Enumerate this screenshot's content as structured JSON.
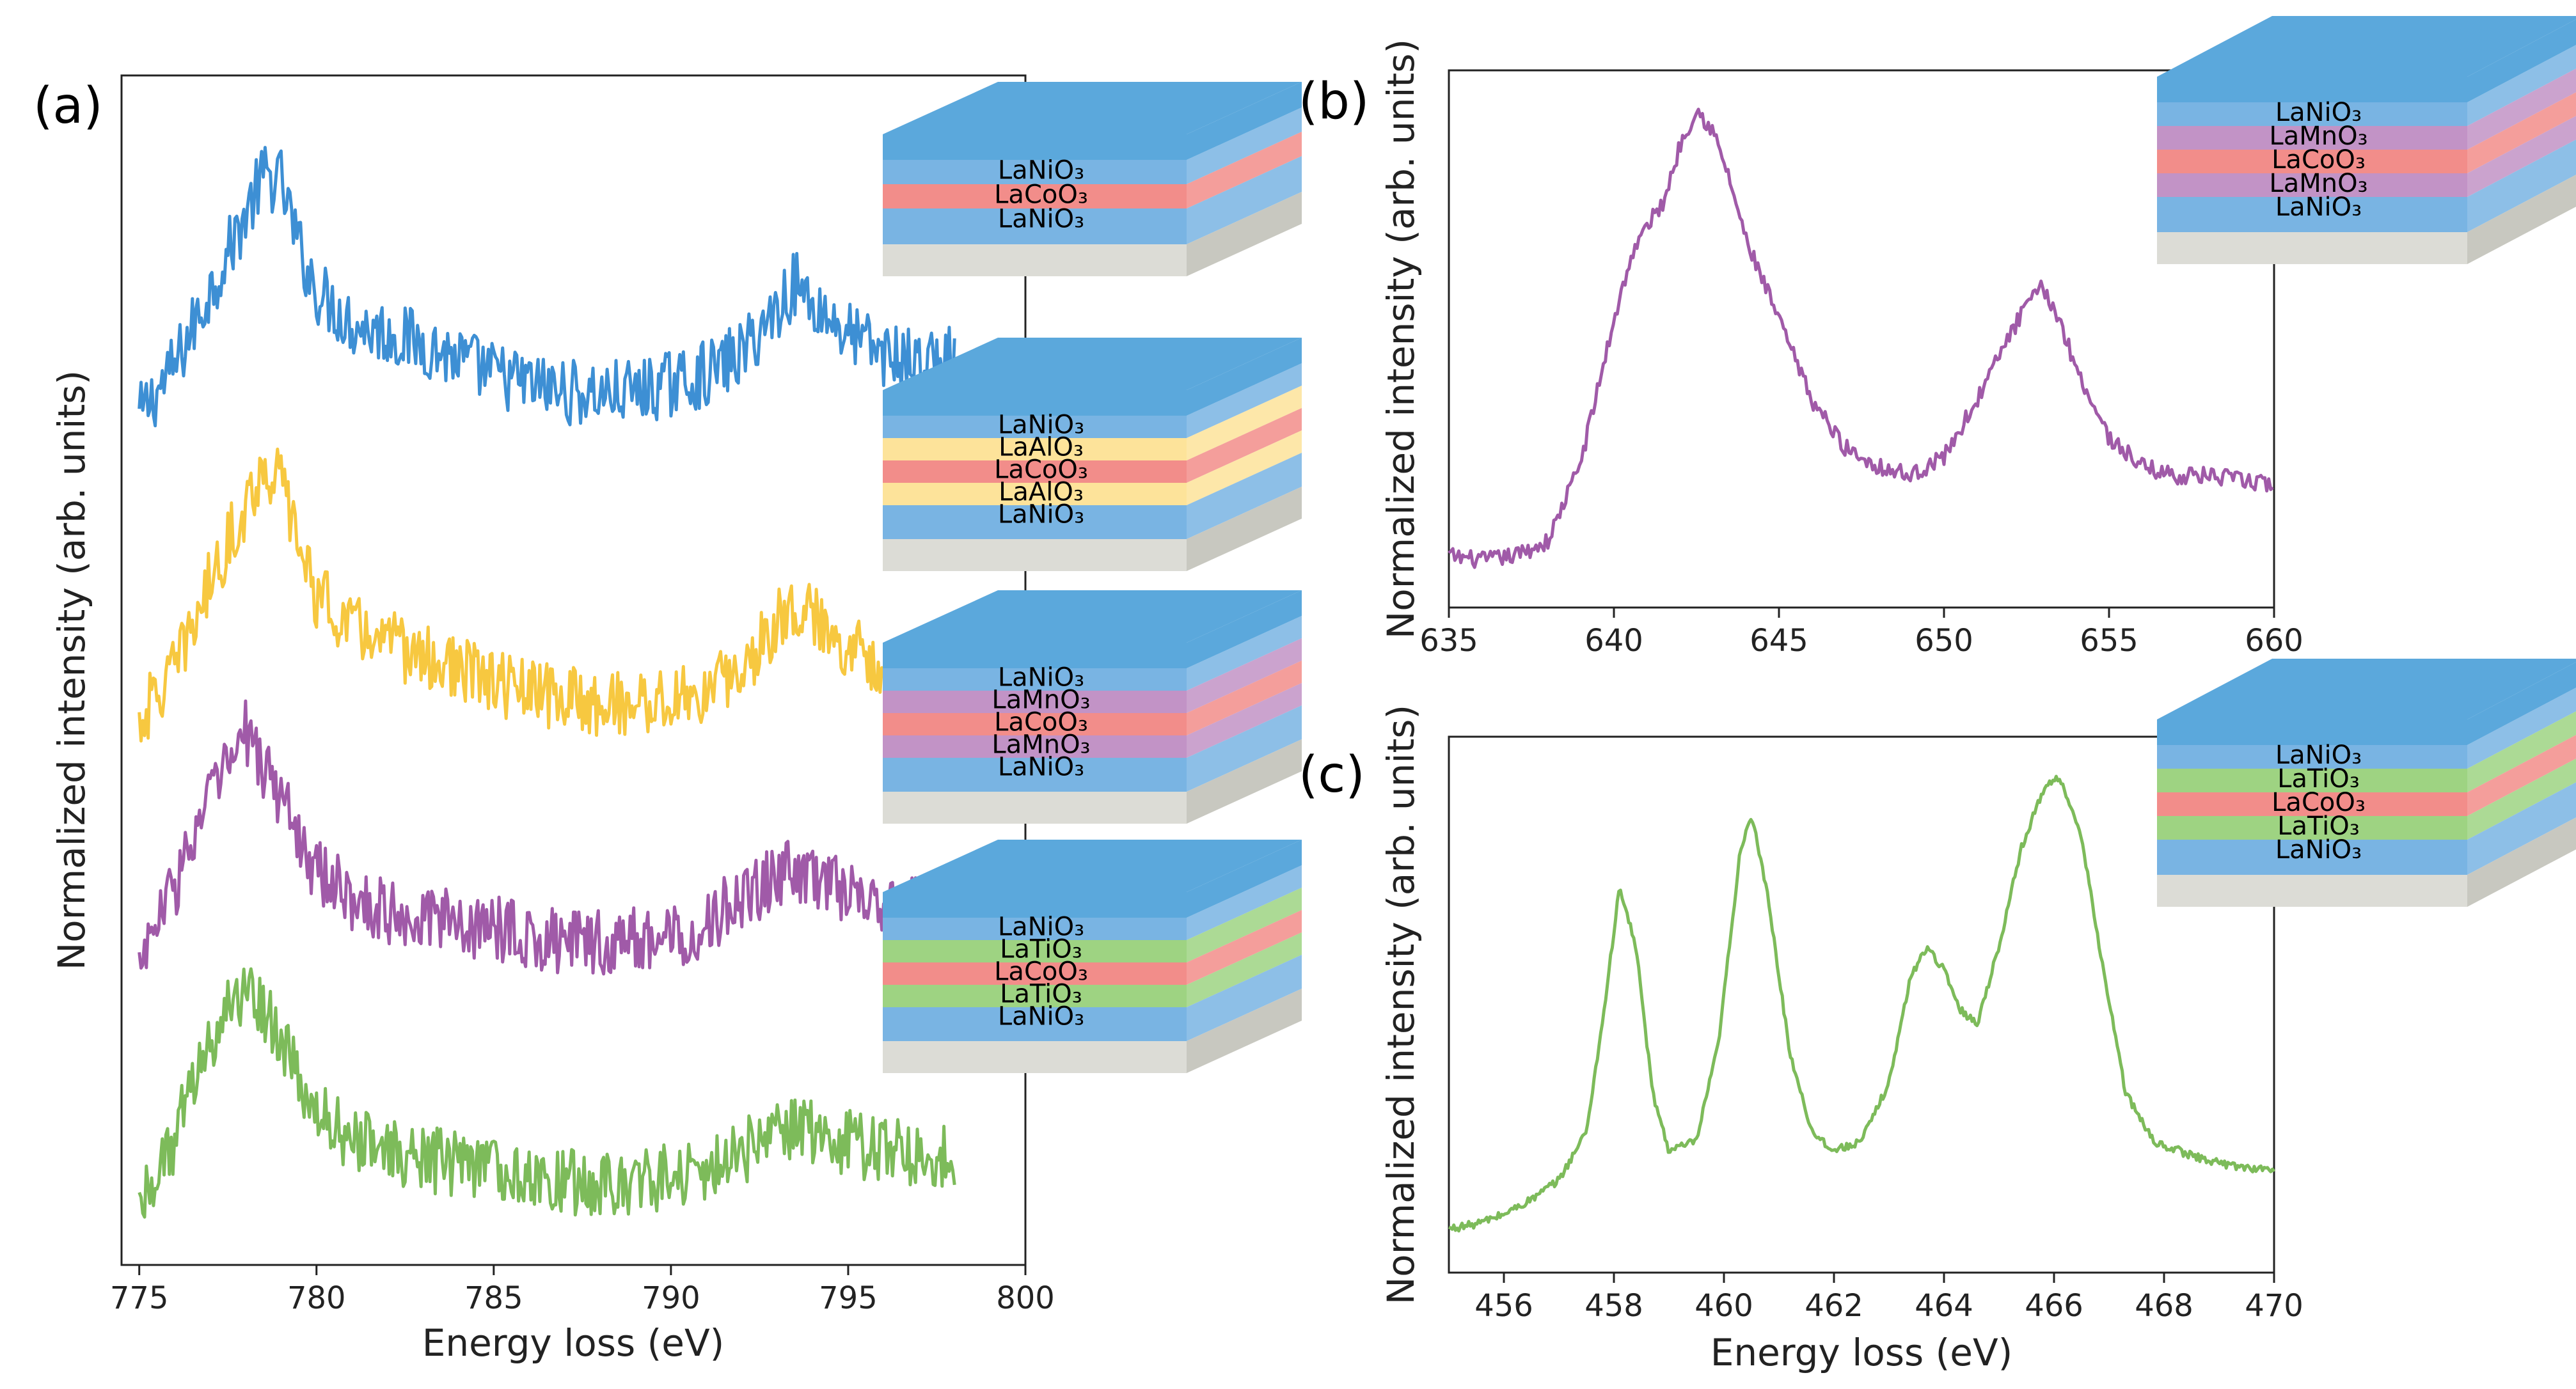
{
  "chart_data": [
    {
      "panel": "(a)",
      "type": "line",
      "xlabel": "Energy loss (eV)",
      "ylabel": "Normalized intensity (arb. units)",
      "xlim": [
        774.5,
        800
      ],
      "xticks": [
        775,
        780,
        785,
        790,
        795,
        800
      ],
      "yticks": false,
      "x": [
        775,
        776,
        777,
        778,
        778.5,
        779,
        779.5,
        780,
        781,
        782,
        783,
        784,
        785,
        786,
        787,
        788,
        789,
        790,
        791,
        792,
        793,
        793.5,
        794,
        795,
        796,
        797,
        798
      ],
      "series": [
        {
          "name": "LaNiO3 / LaCoO3 / LaNiO3",
          "color": "#3d8fd4",
          "offset": 3.1,
          "values": [
            0.05,
            0.25,
            0.55,
            0.85,
            1.0,
            0.98,
            0.72,
            0.55,
            0.42,
            0.38,
            0.34,
            0.28,
            0.22,
            0.18,
            0.15,
            0.14,
            0.15,
            0.18,
            0.22,
            0.3,
            0.48,
            0.58,
            0.5,
            0.38,
            0.3,
            0.26,
            0.28
          ]
        },
        {
          "name": "LaNiO3 / LaAlO3 / LaCoO3 / LaAlO3 / LaNiO3",
          "color": "#f7c840",
          "offset": 1.9,
          "values": [
            0.05,
            0.25,
            0.6,
            0.9,
            1.05,
            1.0,
            0.75,
            0.55,
            0.42,
            0.36,
            0.3,
            0.25,
            0.2,
            0.16,
            0.14,
            0.12,
            0.12,
            0.13,
            0.16,
            0.25,
            0.45,
            0.52,
            0.45,
            0.35,
            0.28,
            0.25,
            0.25
          ]
        },
        {
          "name": "LaNiO3 / LaMnO3 / LaCoO3 / LaMnO3 / LaNiO3",
          "color": "#a05aa8",
          "offset": 0.95,
          "values": [
            0.05,
            0.35,
            0.7,
            0.95,
            0.82,
            0.7,
            0.55,
            0.4,
            0.3,
            0.25,
            0.22,
            0.2,
            0.18,
            0.15,
            0.12,
            0.12,
            0.13,
            0.15,
            0.2,
            0.3,
            0.38,
            0.42,
            0.38,
            0.32,
            0.26,
            0.25,
            0.25
          ]
        },
        {
          "name": "LaNiO3 / LaTiO3 / LaCoO3 / LaTiO3 / LaNiO3",
          "color": "#7dbb5a",
          "offset": 0.0,
          "values": [
            0.05,
            0.3,
            0.7,
            0.9,
            0.82,
            0.68,
            0.52,
            0.4,
            0.3,
            0.25,
            0.22,
            0.2,
            0.18,
            0.15,
            0.13,
            0.12,
            0.13,
            0.15,
            0.18,
            0.25,
            0.32,
            0.34,
            0.32,
            0.28,
            0.25,
            0.24,
            0.24
          ]
        }
      ]
    },
    {
      "panel": "(b)",
      "type": "line",
      "xlabel": "",
      "ylabel": "Normalized intensity (arb. units)",
      "xlim": [
        635,
        660
      ],
      "xticks": [
        635,
        640,
        645,
        650,
        655,
        660
      ],
      "yticks": false,
      "x": [
        635,
        636,
        637,
        638,
        639,
        640,
        640.5,
        641,
        641.5,
        642,
        642.5,
        643,
        643.5,
        644,
        645,
        646,
        647,
        648,
        649,
        650,
        651,
        652,
        652.5,
        653,
        653.5,
        654,
        655,
        656,
        657,
        658,
        659,
        660
      ],
      "series": [
        {
          "name": "LaNiO3 / LaMnO3 / LaCoO3 / LaMnO3 / LaNiO3",
          "color": "#a05aa8",
          "values": [
            0.05,
            0.04,
            0.05,
            0.08,
            0.25,
            0.55,
            0.68,
            0.75,
            0.8,
            0.92,
            1.0,
            0.95,
            0.85,
            0.72,
            0.55,
            0.38,
            0.28,
            0.24,
            0.22,
            0.26,
            0.38,
            0.52,
            0.58,
            0.62,
            0.55,
            0.45,
            0.3,
            0.24,
            0.22,
            0.22,
            0.21,
            0.2
          ]
        }
      ]
    },
    {
      "panel": "(c)",
      "type": "line",
      "xlabel": "Energy loss (eV)",
      "ylabel": "Normalized intensity (arb. units)",
      "xlim": [
        455,
        470
      ],
      "xticks": [
        456,
        458,
        460,
        462,
        464,
        466,
        468,
        470
      ],
      "yticks": false,
      "x": [
        455,
        455.5,
        456,
        456.5,
        457,
        457.5,
        457.8,
        458.1,
        458.4,
        458.7,
        459,
        459.5,
        459.9,
        460.3,
        460.5,
        460.8,
        461.2,
        461.6,
        462,
        462.5,
        463,
        463.4,
        463.7,
        464,
        464.3,
        464.6,
        465,
        465.4,
        465.8,
        466.1,
        466.5,
        466.9,
        467.3,
        467.8,
        468.5,
        469.2,
        470
      ],
      "series": [
        {
          "name": "LaNiO3 / LaTiO3 / LaCoO3 / LaTiO3 / LaNiO3",
          "color": "#7dbb5a",
          "values": [
            0.02,
            0.03,
            0.05,
            0.08,
            0.12,
            0.22,
            0.45,
            0.72,
            0.6,
            0.3,
            0.18,
            0.2,
            0.4,
            0.8,
            0.87,
            0.7,
            0.38,
            0.22,
            0.18,
            0.2,
            0.32,
            0.54,
            0.6,
            0.55,
            0.47,
            0.44,
            0.6,
            0.8,
            0.92,
            0.95,
            0.82,
            0.55,
            0.3,
            0.2,
            0.17,
            0.15,
            0.14
          ]
        }
      ]
    }
  ],
  "stacks": [
    {
      "name": "stack-a1",
      "layers": [
        {
          "label": "LaNiO₃",
          "color": "#79b4e3"
        },
        {
          "label": "LaCoO₃",
          "color": "#f28d8a"
        },
        {
          "label": "LaNiO₃",
          "color": "#79b4e3"
        }
      ]
    },
    {
      "name": "stack-a2",
      "layers": [
        {
          "label": "LaNiO₃",
          "color": "#79b4e3"
        },
        {
          "label": "LaAlO₃",
          "color": "#fde39a"
        },
        {
          "label": "LaCoO₃",
          "color": "#f28d8a"
        },
        {
          "label": "LaAlO₃",
          "color": "#fde39a"
        },
        {
          "label": "LaNiO₃",
          "color": "#79b4e3"
        }
      ]
    },
    {
      "name": "stack-a3",
      "layers": [
        {
          "label": "LaNiO₃",
          "color": "#79b4e3"
        },
        {
          "label": "LaMnO₃",
          "color": "#c293c6"
        },
        {
          "label": "LaCoO₃",
          "color": "#f28d8a"
        },
        {
          "label": "LaMnO₃",
          "color": "#c293c6"
        },
        {
          "label": "LaNiO₃",
          "color": "#79b4e3"
        }
      ]
    },
    {
      "name": "stack-a4",
      "layers": [
        {
          "label": "LaNiO₃",
          "color": "#79b4e3"
        },
        {
          "label": "LaTiO₃",
          "color": "#9ed382"
        },
        {
          "label": "LaCoO₃",
          "color": "#f28d8a"
        },
        {
          "label": "LaTiO₃",
          "color": "#9ed382"
        },
        {
          "label": "LaNiO₃",
          "color": "#79b4e3"
        }
      ]
    },
    {
      "name": "stack-b",
      "layers": [
        {
          "label": "LaNiO₃",
          "color": "#79b4e3"
        },
        {
          "label": "LaMnO₃",
          "color": "#c293c6"
        },
        {
          "label": "LaCoO₃",
          "color": "#f28d8a"
        },
        {
          "label": "LaMnO₃",
          "color": "#c293c6"
        },
        {
          "label": "LaNiO₃",
          "color": "#79b4e3"
        }
      ]
    },
    {
      "name": "stack-c",
      "layers": [
        {
          "label": "LaNiO₃",
          "color": "#79b4e3"
        },
        {
          "label": "LaTiO₃",
          "color": "#9ed382"
        },
        {
          "label": "LaCoO₃",
          "color": "#f28d8a"
        },
        {
          "label": "LaTiO₃",
          "color": "#9ed382"
        },
        {
          "label": "LaNiO₃",
          "color": "#79b4e3"
        }
      ]
    }
  ],
  "colors": {
    "top_face": "#5ba8dc",
    "substrate_front": "#dcdcd6",
    "substrate_side": "#c8c8c0"
  }
}
